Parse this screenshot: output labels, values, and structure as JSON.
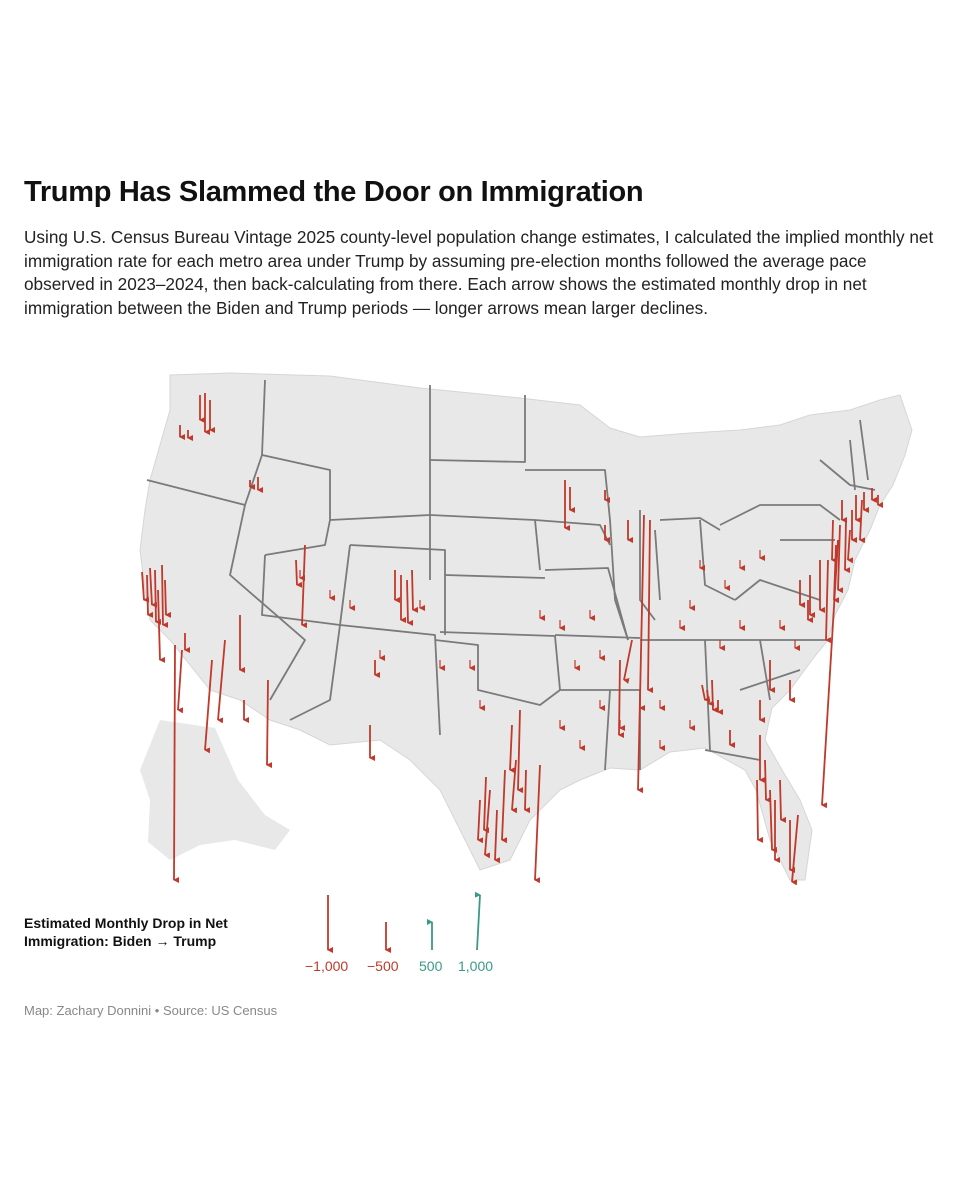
{
  "header": {
    "title": "Trump Has Slammed the Door on Immigration",
    "subtitle": "Using U.S. Census Bureau Vintage 2025 county-level population change estimates, I calculated the implied monthly net immigration rate for each metro area under Trump by assuming pre-election months followed the average pace observed in 2023–2024, then back-calculating from there. Each arrow shows the estimated monthly drop in net immigration between the Biden and Trump periods — longer arrows mean larger declines."
  },
  "colors": {
    "decline": "#c0392b",
    "increase": "#3a9a86",
    "land": "#e8e8e8",
    "border": "#7a7a7a"
  },
  "legend": {
    "title_line1": "Estimated Monthly Drop in Net",
    "title_line2": "Immigration: Biden → Trump",
    "items": [
      {
        "label": "−1,000",
        "value": -1000
      },
      {
        "label": "−500",
        "value": -500
      },
      {
        "label": "500",
        "value": 500
      },
      {
        "label": "1,000",
        "value": 1000
      }
    ]
  },
  "credit": "Map: Zachary Donnini • Source: US Census"
}
